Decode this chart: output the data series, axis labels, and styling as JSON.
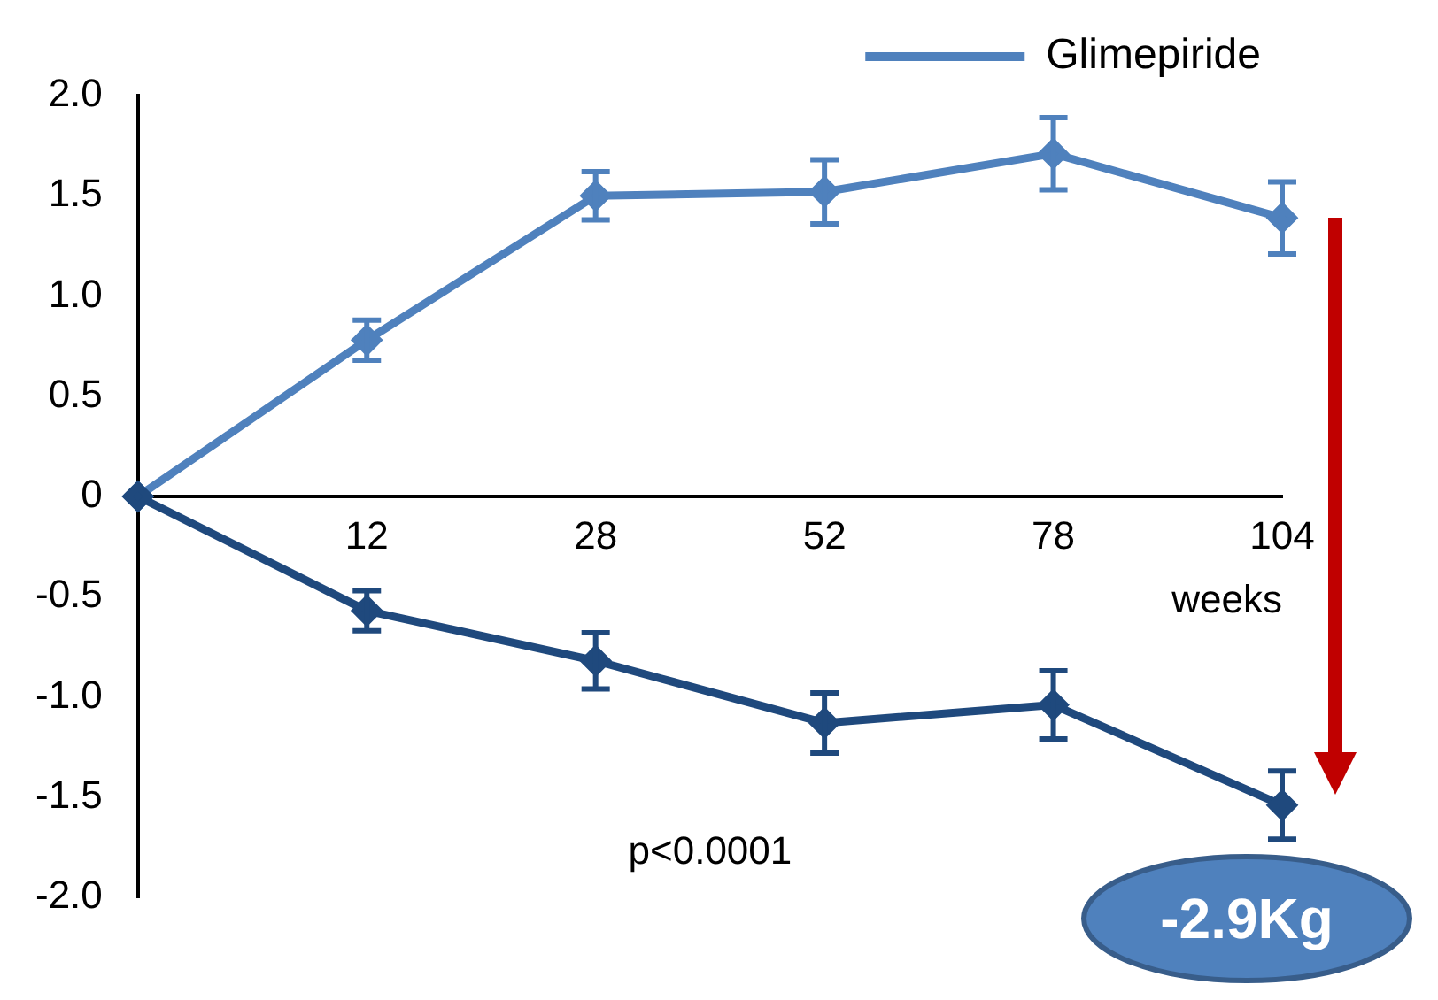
{
  "chart_data": {
    "type": "line",
    "categories": [
      null,
      "12",
      "28",
      "52",
      "78",
      "104"
    ],
    "xlabel": "weeks",
    "series": [
      {
        "color": "#1f497d",
        "values": [
          0,
          -0.57,
          -0.82,
          -1.13,
          -1.04,
          -1.54
        ],
        "errors": [
          null,
          0.1,
          0.14,
          0.15,
          0.17,
          0.17
        ]
      },
      {
        "name": "Glimepiride",
        "color": "#4f81bd",
        "values": [
          0,
          0.78,
          1.5,
          1.52,
          1.71,
          1.39
        ],
        "errors": [
          null,
          0.1,
          0.12,
          0.16,
          0.18,
          0.18
        ]
      }
    ],
    "ylim": [
      -2,
      2
    ],
    "yticks": [
      {
        "value": -2,
        "label": "-2.0"
      },
      {
        "value": -1.5,
        "label": "-1.5"
      },
      {
        "value": -1,
        "label": "-1.0"
      },
      {
        "value": -0.5,
        "label": "-0.5"
      },
      0,
      {
        "value": 0.5,
        "label": "0.5"
      },
      {
        "value": 1,
        "label": "1.0"
      },
      {
        "value": 1.5,
        "label": "1.5"
      },
      {
        "value": 2,
        "label": "2.0"
      }
    ],
    "annotations": [
      "p<0.0001",
      {
        "text": "-2.9Kg",
        "x": "104",
        "y": -1.54
      }
    ],
    "grid": false,
    "legend": "top right",
    "marker": "diamond",
    "line_style": "solid"
  }
}
